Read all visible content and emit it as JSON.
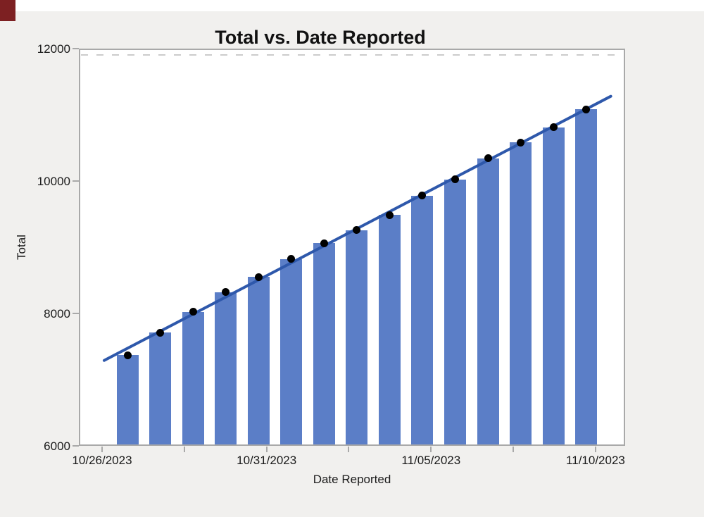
{
  "window": {
    "background_color": "#f1f0ee",
    "top_strip_color": "#ffffff",
    "corner_block_color": "#7d2022"
  },
  "chart": {
    "title": "Total vs. Date Reported",
    "y_axis": {
      "label": "Total",
      "min": 6000,
      "max": 12000,
      "ticks": [
        {
          "value": 12000,
          "label": "12000"
        },
        {
          "value": 10000,
          "label": "10000"
        },
        {
          "value": 8000,
          "label": "8000"
        },
        {
          "value": 6000,
          "label": "6000"
        }
      ]
    },
    "x_axis": {
      "label": "Date Reported",
      "major_tick_labels": [
        "10/26/2023",
        "10/31/2023",
        "11/05/2023",
        "11/10/2023"
      ],
      "minor_ticks_between_majors": 1
    },
    "colors": {
      "bar": "#5b7ec7",
      "trend_line": "#2e58ab",
      "point": "#000000",
      "axis": "#a9a9a9"
    }
  },
  "chart_data": {
    "type": "bar",
    "title": "Total vs. Date Reported",
    "xlabel": "Date Reported",
    "ylabel": "Total",
    "ylim": [
      6000,
      12000
    ],
    "x_tick_labels": [
      "10/26/2023",
      "10/31/2023",
      "11/05/2023",
      "11/10/2023"
    ],
    "categories": [
      "10/27/2023",
      "10/28/2023",
      "10/29/2023",
      "10/30/2023",
      "10/31/2023",
      "11/01/2023",
      "11/02/2023",
      "11/03/2023",
      "11/04/2023",
      "11/05/2023",
      "11/06/2023",
      "11/07/2023",
      "11/08/2023",
      "11/09/2023",
      "11/10/2023"
    ],
    "series": [
      {
        "name": "Total",
        "marks": "bar with black point at bar top",
        "values": [
          7370,
          7710,
          8025,
          8320,
          8550,
          8820,
          9060,
          9260,
          9485,
          9780,
          10025,
          10345,
          10580,
          10810,
          11085
        ]
      }
    ],
    "trend_line": {
      "type": "linear fit",
      "start": {
        "day_offset_from_first_bar": -0.71,
        "value": 7290
      },
      "end": {
        "day_offset_from_first_bar": 14.75,
        "value": 11280
      }
    },
    "legend": "none",
    "grid": "off"
  }
}
